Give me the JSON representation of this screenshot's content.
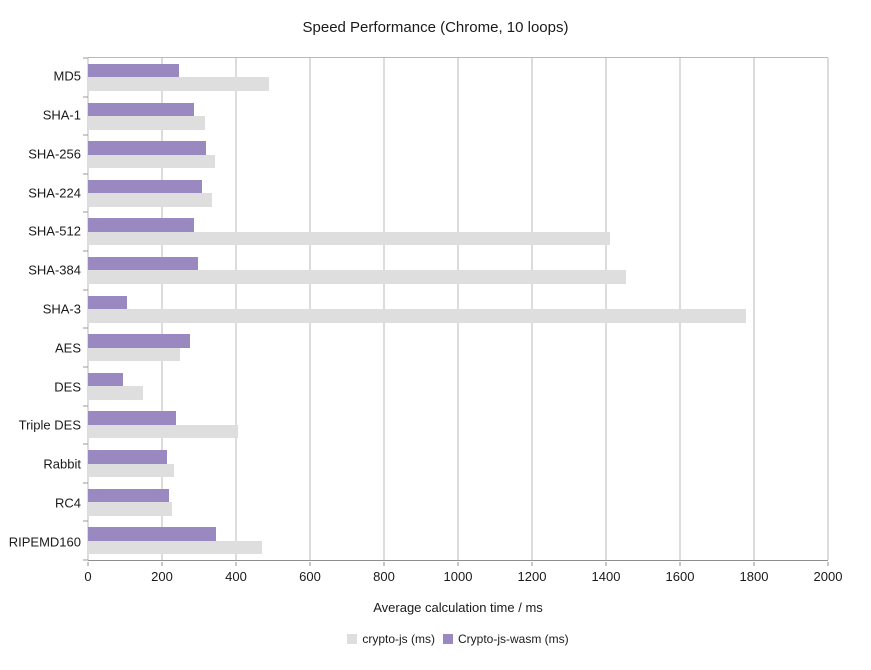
{
  "chart_data": {
    "type": "bar",
    "orientation": "horizontal",
    "title": "Speed Performance (Chrome, 10 loops)",
    "xlabel": "Average calculation time / ms",
    "ylabel": "",
    "categories": [
      "MD5",
      "SHA-1",
      "SHA-256",
      "SHA-224",
      "SHA-512",
      "SHA-384",
      "SHA-3",
      "AES",
      "DES",
      "Triple DES",
      "Rabbit",
      "RC4",
      "RIPEMD160"
    ],
    "series": [
      {
        "name": "crypto-js (ms)",
        "color": "#dedede",
        "values": [
          490,
          315,
          343,
          335,
          1412,
          1453,
          1778,
          248,
          149,
          406,
          232,
          227,
          470
        ]
      },
      {
        "name": "Crypto-js-wasm (ms)",
        "color": "#9a88c0",
        "values": [
          246,
          287,
          318,
          309,
          286,
          297,
          106,
          277,
          94,
          238,
          213,
          218,
          345
        ]
      }
    ],
    "bar_draw_order": [
      1,
      0
    ],
    "xlim": [
      0,
      2000
    ],
    "x_ticks": [
      0,
      200,
      400,
      600,
      800,
      1000,
      1200,
      1400,
      1600,
      1800,
      2000
    ],
    "grid": "vertical",
    "legend_position": "bottom",
    "colors": {
      "background": "#ffffff",
      "gridline": "#b9b9b9",
      "axis": "#8f8f8f",
      "text": "#1a1a1a"
    }
  }
}
